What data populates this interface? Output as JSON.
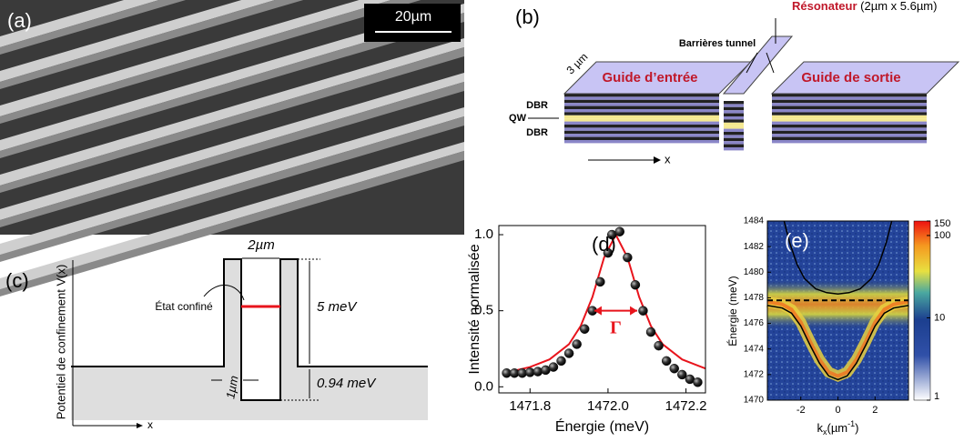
{
  "panels": {
    "a": {
      "label": "(a)",
      "scale_bar": "20µm"
    },
    "b": {
      "label": "(b)",
      "resonator_title": "Résonateur",
      "resonator_size": " (2µm x 5.6µm)",
      "barriers": "Barrières tunnel",
      "width": "3 µm",
      "input_guide": "Guide d’entrée",
      "output_guide": "Guide de sortie",
      "dbr_top": "DBR",
      "qw": "QW",
      "dbr_bottom": "DBR",
      "axis": "x"
    },
    "c": {
      "label": "(c)",
      "y_label": "Potentiel de confinement V(x)",
      "well_width": "2µm",
      "state": "État confiné",
      "barrier_height": "5 meV",
      "barrier_width": "1µm",
      "depth": "0.94 meV",
      "axis": "x"
    }
  },
  "chart_data": [
    {
      "type": "scatter",
      "label": "(d)",
      "x_label": "Énergie (meV)",
      "y_label": "Intensité normalisée",
      "annotation": "Γ",
      "xlim": [
        1471.72,
        1472.25
      ],
      "xticks": [
        1471.8,
        {
          "value": 1472,
          "label": "1472.0"
        },
        1472.2
      ],
      "ylim": [
        -0.04,
        1.06
      ],
      "yticks": [
        {
          "value": 0,
          "label": "0.0"
        },
        0.5,
        {
          "value": 1,
          "label": "1.0"
        }
      ],
      "series": [
        {
          "kind": "line",
          "color": "#e8141c",
          "x": [
            1471.75,
            1471.8,
            1471.85,
            1471.9,
            1471.93,
            1471.96,
            1471.99,
            1472.02,
            1472.05,
            1472.08,
            1472.11,
            1472.14,
            1472.19,
            1472.24,
            1472.25
          ],
          "values": [
            0.1,
            0.13,
            0.18,
            0.28,
            0.4,
            0.59,
            0.85,
            1.0,
            0.85,
            0.59,
            0.4,
            0.28,
            0.18,
            0.13,
            0.12
          ]
        },
        {
          "kind": "points",
          "color": "#111111",
          "x": [
            1471.74,
            1471.76,
            1471.78,
            1471.8,
            1471.82,
            1471.84,
            1471.86,
            1471.88,
            1471.9,
            1471.92,
            1471.94,
            1471.96,
            1471.98,
            1472.0,
            1472.01,
            1472.03,
            1472.05,
            1472.07,
            1472.09,
            1472.11,
            1472.13,
            1472.15,
            1472.17,
            1472.19,
            1472.21,
            1472.23
          ],
          "values": [
            0.09,
            0.09,
            0.09,
            0.095,
            0.1,
            0.11,
            0.13,
            0.17,
            0.22,
            0.28,
            0.38,
            0.5,
            0.69,
            0.88,
            1.0,
            1.02,
            0.85,
            0.67,
            0.5,
            0.36,
            0.27,
            0.17,
            0.12,
            0.08,
            0.05,
            0.03
          ]
        }
      ]
    },
    {
      "type": "heatmap",
      "label": "(e)",
      "x_label_base": "k",
      "x_label_sub": "x",
      "x_label_unit": "(µm",
      "x_label_sup": "-1",
      "x_label_close": ")",
      "y_label": "Énergie (meV)",
      "xlim": [
        -3.8,
        3.8
      ],
      "xticks": [
        -2,
        0,
        2
      ],
      "ylim": [
        1470,
        1484
      ],
      "yticks": [
        1470,
        1472,
        1474,
        1476,
        1478,
        1480,
        1482,
        1484
      ],
      "colorbar": {
        "lim": [
          1,
          150
        ],
        "log": true,
        "ticks": [
          1,
          10,
          100,
          150
        ]
      },
      "hline": 1477.8,
      "series": [
        {
          "color": "#000000",
          "x": [
            -2.9,
            -2.6,
            -2.2,
            -1.8,
            -1.2,
            -0.6,
            0,
            0.6,
            1.2,
            1.8,
            2.2,
            2.6,
            2.9
          ],
          "values": [
            1484,
            1482.3,
            1480.6,
            1479.5,
            1478.7,
            1478.4,
            1478.3,
            1478.4,
            1478.7,
            1479.5,
            1480.6,
            1482.3,
            1484
          ]
        },
        {
          "color": "#000000",
          "x": [
            -3.8,
            -3,
            -2.5,
            -2,
            -1.5,
            -1,
            -0.5,
            0,
            0.5,
            1,
            1.5,
            2,
            2.5,
            3,
            3.8
          ],
          "values": [
            1477.4,
            1477.2,
            1476.8,
            1475.8,
            1474.3,
            1472.9,
            1471.9,
            1471.6,
            1471.9,
            1472.9,
            1474.3,
            1475.8,
            1476.8,
            1477.2,
            1477.4
          ]
        }
      ]
    }
  ]
}
